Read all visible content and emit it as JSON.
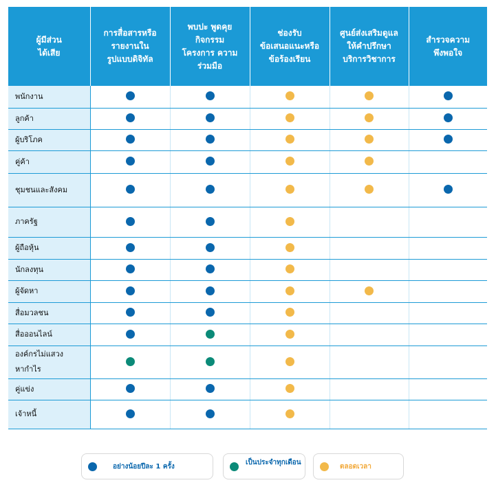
{
  "colors": {
    "blue": "#0a67ad",
    "teal": "#0b8a78",
    "orange": "#f2b94a",
    "header_bg": "#1b9ad6",
    "stakeholder_bg": "#dcf0fa"
  },
  "header": {
    "stakeholder": "ผู้มีส่วน\nได้เสีย",
    "columns": [
      "การสื่อสารหรือ\nรายงานใน\nรูปแบบดิจิทัล",
      "พบปะ พูดคุย\nกิจกรรม\nโครงการ ความ\nร่วมมือ",
      "ช่องรับ\nข้อเสนอแนะหรือ\nข้อร้องเรียน",
      "ศูนย์ส่งเสริมดูแล\nให้คำปรึกษา\nบริการวิชาการ",
      "สำรวจความ\nพึงพอใจ"
    ]
  },
  "rows": [
    {
      "label": "พนักงาน",
      "marks": [
        "blue",
        "blue",
        "orange",
        "orange",
        "blue"
      ]
    },
    {
      "label": "ลูกค้า",
      "marks": [
        "blue",
        "blue",
        "orange",
        "orange",
        "blue"
      ]
    },
    {
      "label": "ผู้บริโภค",
      "marks": [
        "blue",
        "blue",
        "orange",
        "orange",
        "blue"
      ]
    },
    {
      "label": "คู่ค้า",
      "marks": [
        "blue",
        "blue",
        "orange",
        "orange",
        ""
      ]
    },
    {
      "label": "ชุมชนและสังคม",
      "marks": [
        "blue",
        "blue",
        "orange",
        "orange",
        "blue"
      ]
    },
    {
      "label": "ภาครัฐ",
      "marks": [
        "blue",
        "blue",
        "orange",
        "",
        ""
      ]
    },
    {
      "label": "ผู้ถือหุ้น",
      "marks": [
        "blue",
        "blue",
        "orange",
        "",
        ""
      ]
    },
    {
      "label": "นักลงทุน",
      "marks": [
        "blue",
        "blue",
        "orange",
        "",
        ""
      ]
    },
    {
      "label": "ผู้จัดหา",
      "marks": [
        "blue",
        "blue",
        "orange",
        "orange",
        ""
      ]
    },
    {
      "label": "สื่อมวลชน",
      "marks": [
        "blue",
        "blue",
        "orange",
        "",
        ""
      ]
    },
    {
      "label": "สื่อออนไลน์",
      "marks": [
        "blue",
        "teal",
        "orange",
        "",
        ""
      ]
    },
    {
      "label": "องค์กรไม่แสวง\nหากำไร",
      "marks": [
        "teal",
        "teal",
        "orange",
        "",
        ""
      ]
    },
    {
      "label": "คู่แข่ง",
      "marks": [
        "blue",
        "blue",
        "orange",
        "",
        ""
      ]
    },
    {
      "label": "เจ้าหนี้",
      "marks": [
        "blue",
        "blue",
        "orange",
        "",
        ""
      ]
    }
  ],
  "legend": [
    {
      "color": "blue",
      "label": "อย่างน้อยปีละ 1 ครั้ง"
    },
    {
      "color": "teal",
      "label": "เป็นประจำทุกเดือน"
    },
    {
      "color": "orange",
      "label": "ตลอดเวลา"
    }
  ]
}
